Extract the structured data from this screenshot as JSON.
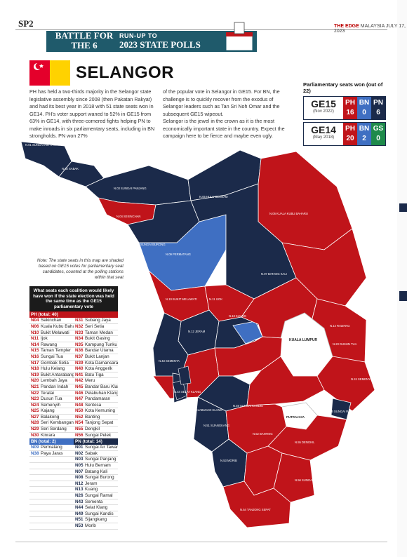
{
  "page": {
    "number": "SP2"
  },
  "masthead": {
    "brand": "THE EDGE",
    "text": "MALAYSIA  JULY 17, 2023"
  },
  "banner": {
    "left": "BATTLE FOR THE 6",
    "small": "RUN-UP TO",
    "big": "2023 STATE POLLS"
  },
  "title": "SELANGOR",
  "intro": {
    "col1": "PH has held a two-thirds majority in the Selangor state legislative assembly since 2008 (then Pakatan Rakyat) and had its best year in 2018 with 51 state seats won in GE14. PH's voter support waned to 52% in GE15 from 63% in GE14, with three-cornered fights helping PN to make inroads in six parliamentary seats, including in BN strongholds. PN won 27%",
    "col2": "of the popular vote in Selangor in GE15. For BN, the challenge is to quickly recover from the exodus of Selangor leaders such as Tan Sri Noh Omar and the subsequent GE15 wipeout.\n    Selangor is the jewel in the crown as it is the most economically important state in the country. Expect the campaign here to be fierce and maybe even ugly."
  },
  "parliament": {
    "title": "Parliamentary seats won (out of 22)",
    "rows": [
      {
        "label": "GE15",
        "date": "(Nov 2022)",
        "cells": [
          {
            "party": "PH",
            "seats": "16",
            "color": "#c0141a"
          },
          {
            "party": "BN",
            "seats": "0",
            "color": "#3f6fc2"
          },
          {
            "party": "PN",
            "seats": "6",
            "color": "#1b2a4a"
          }
        ]
      },
      {
        "label": "GE14",
        "date": "(May 2018)",
        "cells": [
          {
            "party": "PH",
            "seats": "20",
            "color": "#c0141a"
          },
          {
            "party": "BN",
            "seats": "2",
            "color": "#3f6fc2"
          },
          {
            "party": "GS",
            "seats": "0",
            "color": "#1e8a4a"
          }
        ]
      }
    ]
  },
  "note": "Note: The state seats in this map are shaded based on GE15 votes for parliamentary seat candidates, counted at the polling stations within that seat",
  "colors": {
    "ph": "#c0141a",
    "bn": "#3f6fc2",
    "pn": "#1b2a4a"
  },
  "table": {
    "heading": "What seats each coalition would likely have won if the state election was held the same time as the GE15 parliamentary vote",
    "ph_label": "PH (total: 40)",
    "ph_rows": [
      [
        "N04",
        "Sekinchan",
        "N31",
        "Subang Jaya"
      ],
      [
        "N06",
        "Kuala Kubu Baharu",
        "N32",
        "Seri Setia"
      ],
      [
        "N10",
        "Bukit Melawati",
        "N33",
        "Taman Medan"
      ],
      [
        "N11",
        "Ijok",
        "N34",
        "Bukit Gasing"
      ],
      [
        "N14",
        "Rawang",
        "N35",
        "Kampung Tunku"
      ],
      [
        "N15",
        "Taman Templer",
        "N36",
        "Bandar Utama"
      ],
      [
        "N16",
        "Sungai Tua",
        "N37",
        "Bukit Lanjan"
      ],
      [
        "N17",
        "Gombak Setia",
        "N39",
        "Kota Damansara"
      ],
      [
        "N18",
        "Hulu Kelang",
        "N40",
        "Kota Anggerik"
      ],
      [
        "N19",
        "Bukit Antarabangsa",
        "N41",
        "Batu Tiga"
      ],
      [
        "N20",
        "Lembah Jaya",
        "N42",
        "Meru"
      ],
      [
        "N21",
        "Pandan Indah",
        "N45",
        "Bandar Baru Klang"
      ],
      [
        "N22",
        "Teratai",
        "N46",
        "Pelabuhan Klang"
      ],
      [
        "N23",
        "Dusun Tua",
        "N47",
        "Pandamaran"
      ],
      [
        "N24",
        "Semenyih",
        "N48",
        "Sentosa"
      ],
      [
        "N25",
        "Kajang",
        "N50",
        "Kota Kemuning"
      ],
      [
        "N27",
        "Balakong",
        "N52",
        "Banting"
      ],
      [
        "N28",
        "Seri Kembangan",
        "N54",
        "Tanjong Sepat"
      ],
      [
        "N29",
        "Seri Serdang",
        "N55",
        "Dengkil"
      ],
      [
        "N30",
        "Kinrara",
        "N56",
        "Sungai Pelek"
      ]
    ],
    "bn_label": "BN (total: 2)",
    "pn_label": "PN (total: 14)",
    "bn_pn_rows": [
      [
        "N09",
        "Permatang",
        "N01",
        "Sungai Air Tawar"
      ],
      [
        "N38",
        "Paya Jaras",
        "N02",
        "Sabak"
      ],
      [
        "",
        "",
        "N03",
        "Sungai Panjang"
      ],
      [
        "",
        "",
        "N05",
        "Hulu Bernam"
      ],
      [
        "",
        "",
        "N07",
        "Batang Kali"
      ],
      [
        "",
        "",
        "N08",
        "Sungai Burong"
      ],
      [
        "",
        "",
        "N12",
        "Jeram"
      ],
      [
        "",
        "",
        "N13",
        "Kuang"
      ],
      [
        "",
        "",
        "N26",
        "Sungai Ramal"
      ],
      [
        "",
        "",
        "N43",
        "Sementa"
      ],
      [
        "",
        "",
        "N44",
        "Selat Klang"
      ],
      [
        "",
        "",
        "N49",
        "Sungai Kandis"
      ],
      [
        "",
        "",
        "N51",
        "Sijangkang"
      ],
      [
        "",
        "",
        "N53",
        "Morib"
      ]
    ]
  },
  "map": {
    "labels": [
      {
        "t": "N.01 SUNGAI AIR TAWAR"
      },
      {
        "t": "N.02 SABAK"
      },
      {
        "t": "N.03 SUNGAI PANJANG"
      },
      {
        "t": "N.04 SEKINCHAN"
      },
      {
        "t": "N.05 HULU BERNAM"
      },
      {
        "t": "N.06 KUALA KUBU BAHARU"
      },
      {
        "t": "N.07 BATANG KALI"
      },
      {
        "t": "N.08 SUNGAI BURONG"
      },
      {
        "t": "N.09 PERMATANG"
      },
      {
        "t": "N.10 BUKIT MELAWATI"
      },
      {
        "t": "N.11 IJOK"
      },
      {
        "t": "N.12 JERAM"
      },
      {
        "t": "N.13 KUANG"
      },
      {
        "t": "N.43 SEMENTA"
      },
      {
        "t": "N.44 SELAT KLANG"
      },
      {
        "t": "N.46 PELABUHAN KLANG"
      },
      {
        "t": "N.49 SUNGAI KANDIS"
      },
      {
        "t": "N.51 SIJANGKANG"
      },
      {
        "t": "N.52 BANTING"
      },
      {
        "t": "N.53 MORIB"
      },
      {
        "t": "N.54 TANJONG SEPAT"
      },
      {
        "t": "N.55 DENGKIL"
      },
      {
        "t": "N.56 SUNGAI PELEK"
      },
      {
        "t": "N.26 SUNGAI RAMAL"
      },
      {
        "t": "N.24 SEMENYIH"
      },
      {
        "t": "N.14 RAWANG"
      },
      {
        "t": "N.23 DUSUN TUA"
      }
    ],
    "kl": "KUALA LUMPUR",
    "putrajaya": "PUTRAJAYA"
  }
}
